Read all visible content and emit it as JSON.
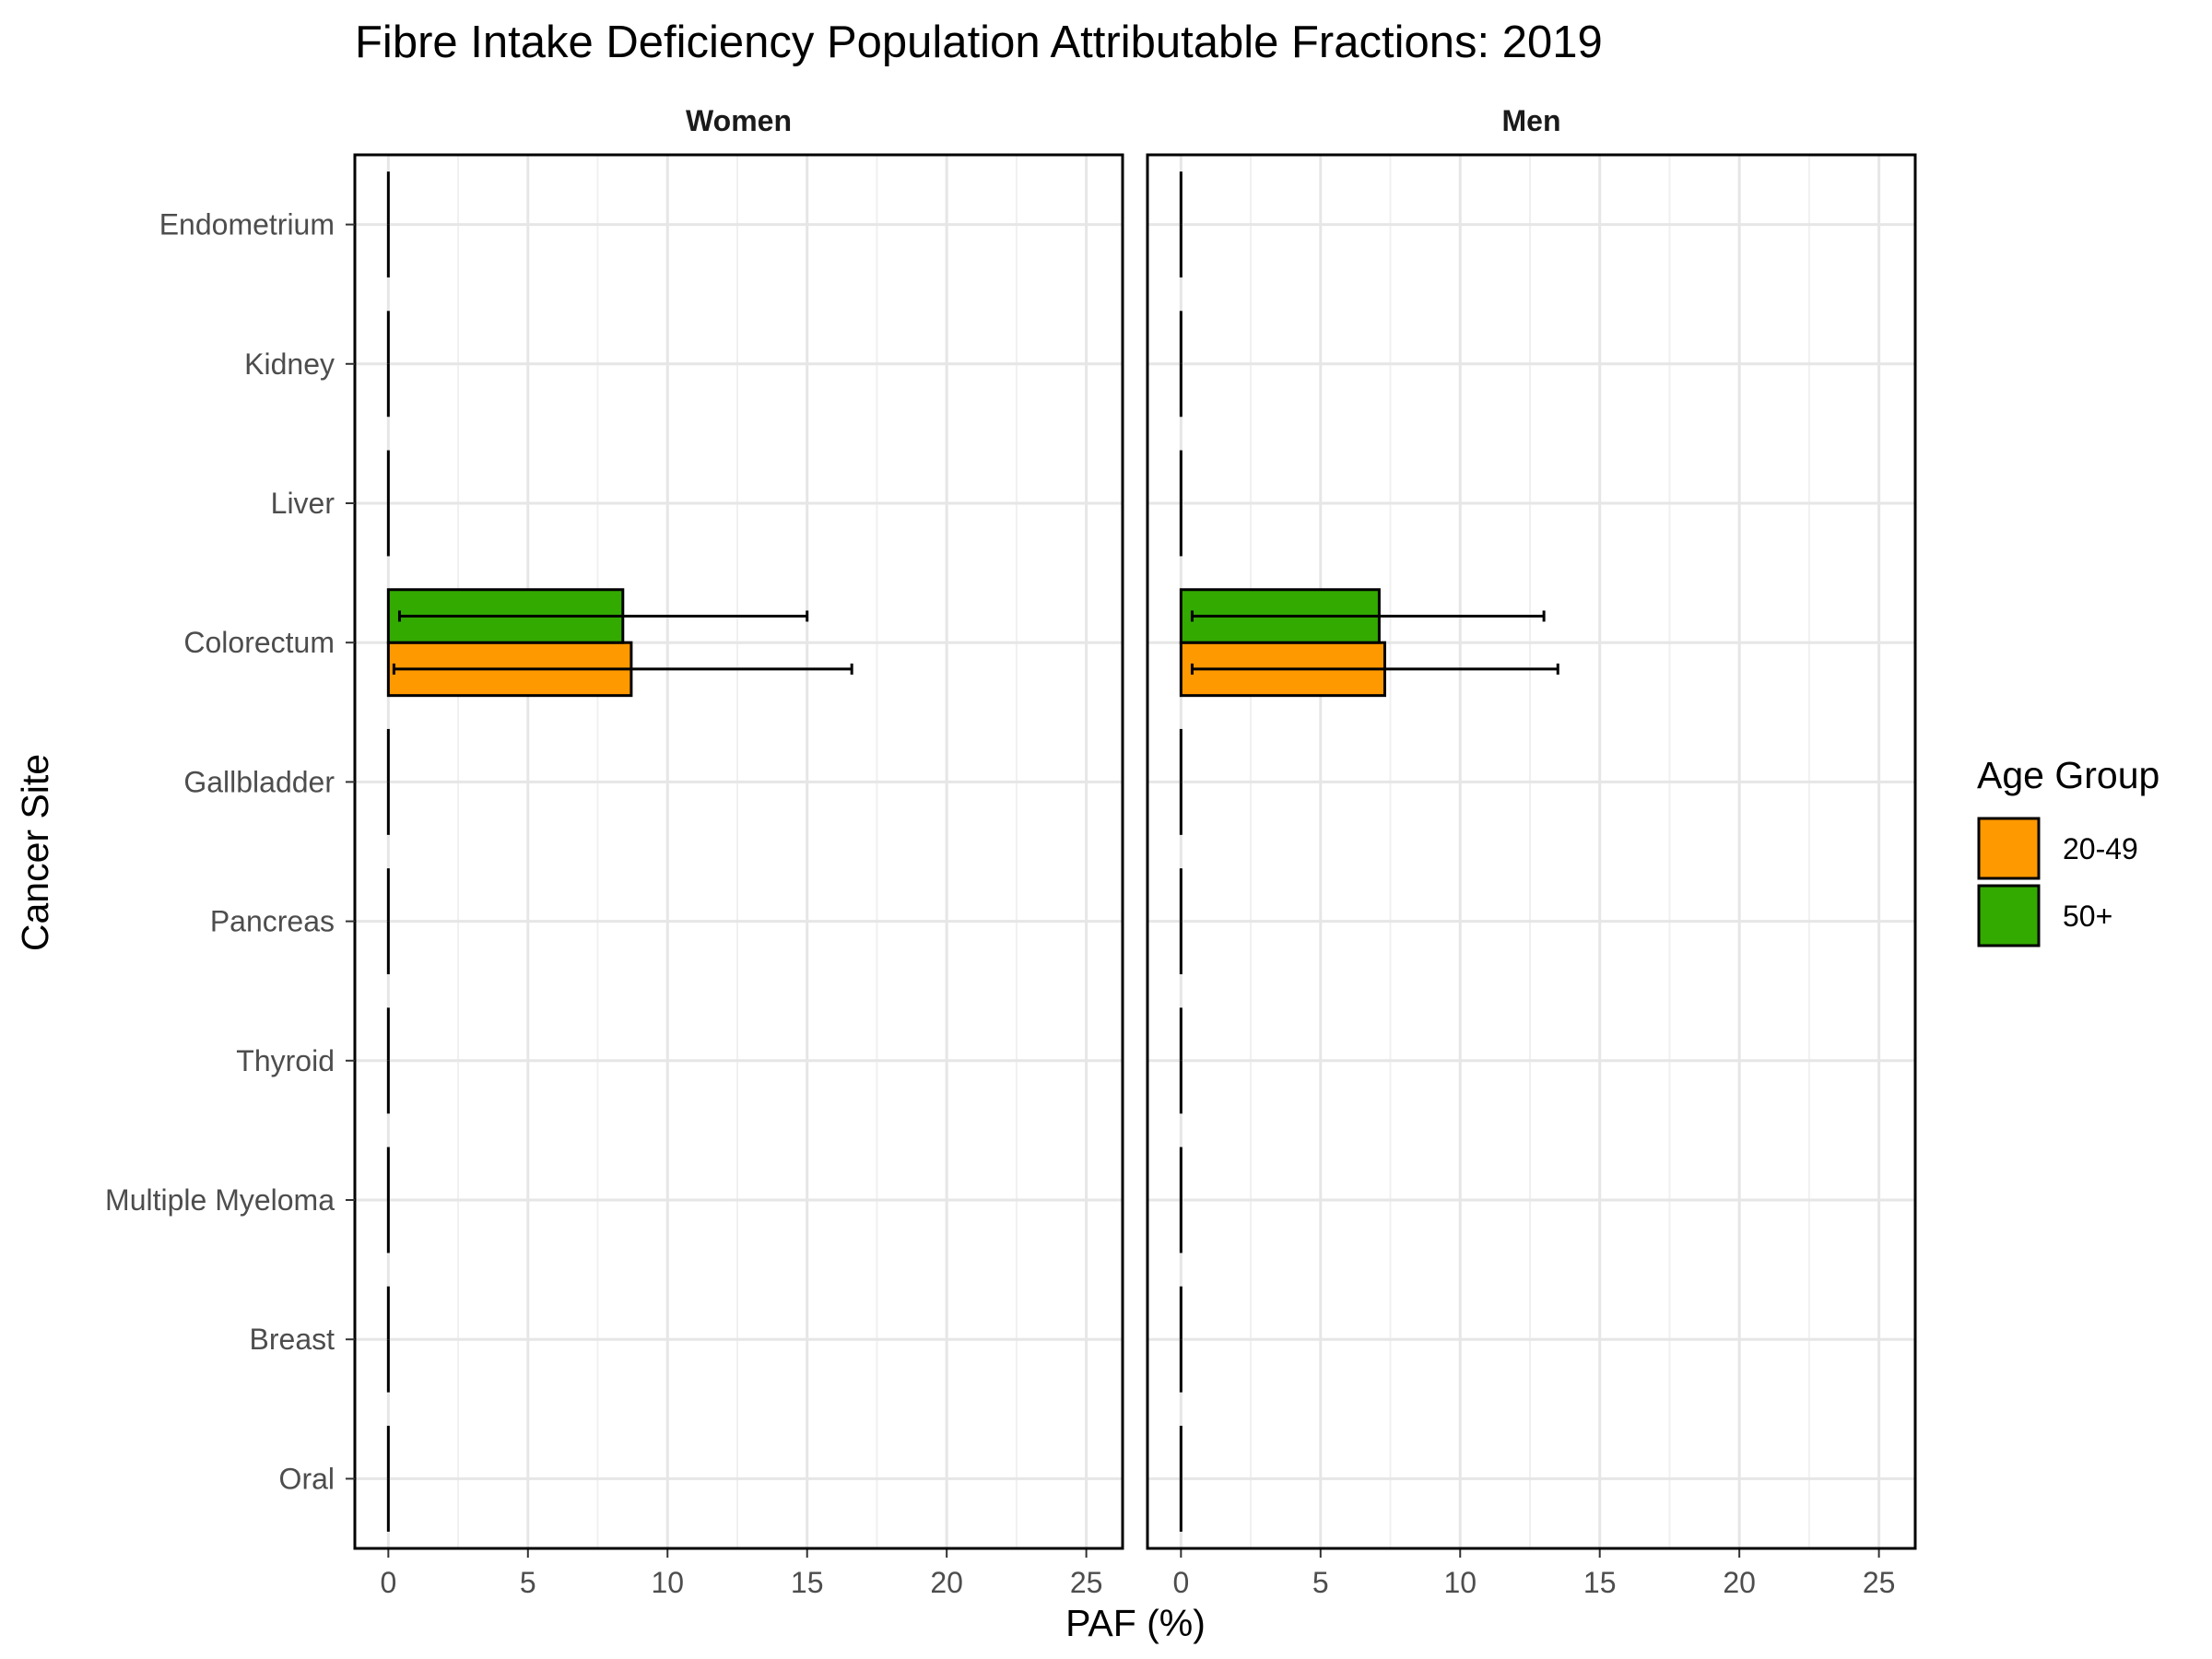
{
  "chart_data": {
    "type": "bar",
    "orientation": "horizontal",
    "title": "Fibre Intake Deficiency Population Attributable Fractions: 2019",
    "xlabel": "PAF (%)",
    "ylabel": "Cancer Site",
    "xlim": [
      -1.2,
      26.3
    ],
    "x_ticks": [
      "0",
      "5",
      "10",
      "15",
      "20",
      "25"
    ],
    "grid": true,
    "categories": [
      "Endometrium",
      "Kidney",
      "Liver",
      "Colorectum",
      "Gallbladder",
      "Pancreas",
      "Thyroid",
      "Multiple Myeloma",
      "Breast",
      "Oral"
    ],
    "legend": {
      "title": "Age Group",
      "position": "right",
      "entries": [
        {
          "label": "20-49",
          "color": "#ff9900"
        },
        {
          "label": "50+",
          "color": "#33aa00"
        }
      ]
    },
    "panels": [
      {
        "name": "Women",
        "series": [
          {
            "name": "20-49",
            "values": [
              0,
              0,
              0,
              8.7,
              0,
              0,
              0,
              0,
              0,
              0
            ],
            "err_low": [
              0,
              0,
              0,
              0.2,
              0,
              0,
              0,
              0,
              0,
              0
            ],
            "err_high": [
              0,
              0,
              0,
              16.6,
              0,
              0,
              0,
              0,
              0,
              0
            ]
          },
          {
            "name": "50+",
            "values": [
              0,
              0,
              0,
              8.4,
              0,
              0,
              0,
              0,
              0,
              0
            ],
            "err_low": [
              0,
              0,
              0,
              0.4,
              0,
              0,
              0,
              0,
              0,
              0
            ],
            "err_high": [
              0,
              0,
              0,
              15.0,
              0,
              0,
              0,
              0,
              0,
              0
            ]
          }
        ]
      },
      {
        "name": "Men",
        "series": [
          {
            "name": "20-49",
            "values": [
              0,
              0,
              0,
              7.3,
              0,
              0,
              0,
              0,
              0,
              0
            ],
            "err_low": [
              0,
              0,
              0,
              0.4,
              0,
              0,
              0,
              0,
              0,
              0
            ],
            "err_high": [
              0,
              0,
              0,
              13.5,
              0,
              0,
              0,
              0,
              0,
              0
            ]
          },
          {
            "name": "50+",
            "values": [
              0,
              0,
              0,
              7.1,
              0,
              0,
              0,
              0,
              0,
              0
            ],
            "err_low": [
              0,
              0,
              0,
              0.4,
              0,
              0,
              0,
              0,
              0,
              0
            ],
            "err_high": [
              0,
              0,
              0,
              13.0,
              0,
              0,
              0,
              0,
              0,
              0
            ]
          }
        ]
      }
    ]
  }
}
